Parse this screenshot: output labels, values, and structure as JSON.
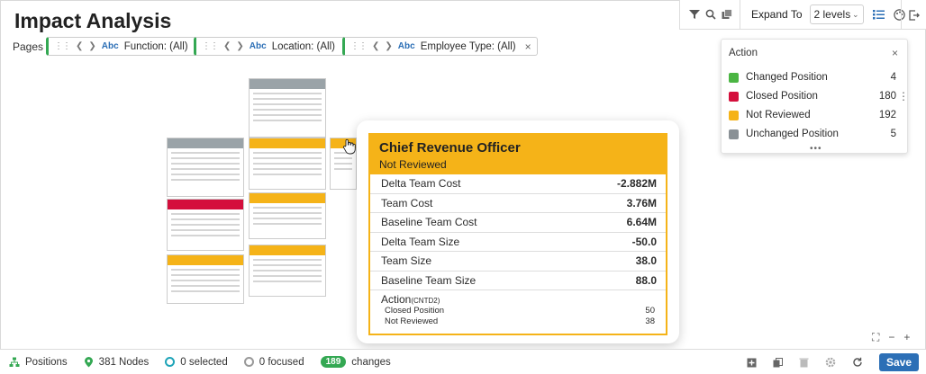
{
  "header": {
    "title": "Impact Analysis"
  },
  "toolbar": {
    "expand_label": "Expand To",
    "expand_value": "2 levels"
  },
  "filters": {
    "label": "Pages",
    "abc": "Abc",
    "chips": [
      {
        "text": "Function: (All)"
      },
      {
        "text": "Location: (All)"
      },
      {
        "text": "Employee Type: (All)"
      }
    ]
  },
  "legend": {
    "title": "Action",
    "items": [
      {
        "label": "Changed Position",
        "count": "4",
        "color": "#4bb543"
      },
      {
        "label": "Closed Position",
        "count": "180",
        "color": "#d40f3c"
      },
      {
        "label": "Not Reviewed",
        "count": "192",
        "color": "#f5b318"
      },
      {
        "label": "Unchanged Position",
        "count": "5",
        "color": "#8a9196"
      }
    ],
    "more": "•••"
  },
  "detail": {
    "title": "Chief Revenue Officer",
    "status": "Not Reviewed",
    "metrics": [
      {
        "label": "Delta Team Cost",
        "value": "-2.882M"
      },
      {
        "label": "Team Cost",
        "value": "3.76M"
      },
      {
        "label": "Baseline Team Cost",
        "value": "6.64M"
      },
      {
        "label": "Delta Team Size",
        "value": "-50.0"
      },
      {
        "label": "Team Size",
        "value": "38.0"
      },
      {
        "label": "Baseline Team Size",
        "value": "88.0"
      }
    ],
    "action_label": "Action",
    "action_suffix": "(CNTD2)",
    "actions": [
      {
        "label": "Closed Position",
        "value": "50"
      },
      {
        "label": "Not Reviewed",
        "value": "38"
      }
    ]
  },
  "status_bar": {
    "positions": "Positions",
    "nodes": "381 Nodes",
    "selected": "0 selected",
    "focused": "0 focused",
    "changes_count": "189",
    "changes_label": "changes",
    "save": "Save"
  }
}
